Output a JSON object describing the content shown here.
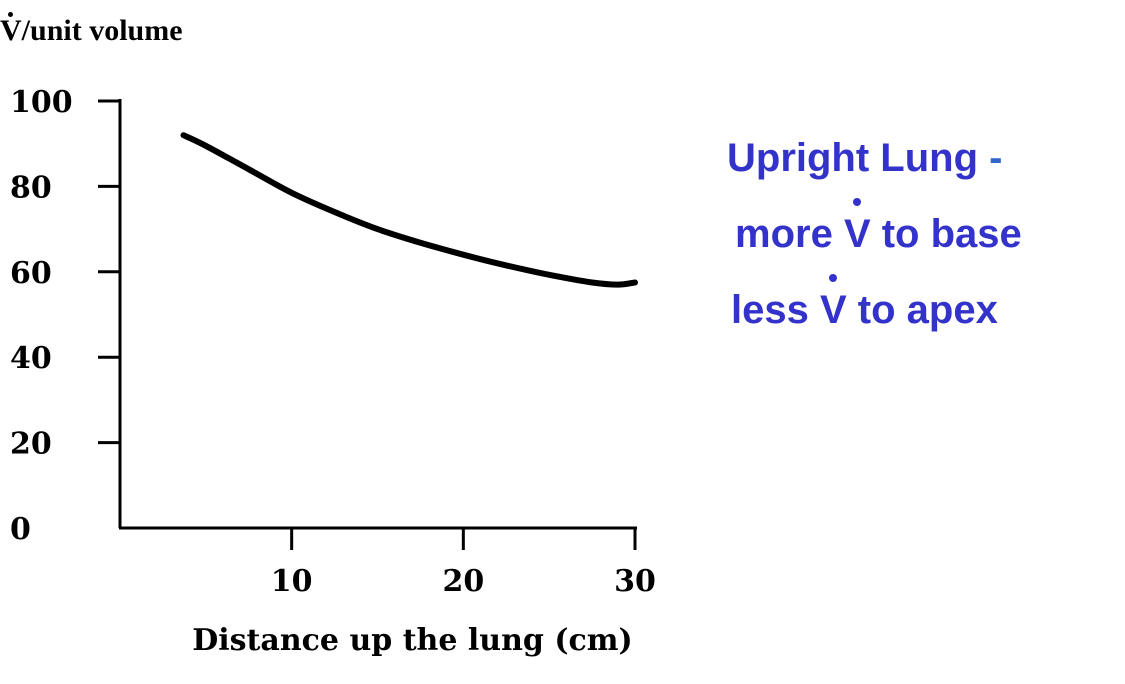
{
  "chart_data": {
    "type": "line",
    "ylabel_prefix": "V",
    "ylabel_rest": "/unit volume",
    "xlabel": "Distance up the lung (cm)",
    "x_ticks": [
      10,
      20,
      30
    ],
    "y_ticks": [
      0,
      20,
      40,
      60,
      80,
      100
    ],
    "xlim": [
      0,
      30
    ],
    "ylim": [
      0,
      100
    ],
    "grid": false,
    "series": [
      {
        "x": [
          3.7,
          5,
          7.5,
          10,
          12.5,
          15,
          17.5,
          20,
          22.5,
          25,
          27.5,
          29,
          30
        ],
        "y": [
          92,
          89.5,
          84,
          78.5,
          74,
          70,
          66.8,
          64,
          61.5,
          59.3,
          57.5,
          57,
          57.5
        ]
      }
    ]
  },
  "annotation": {
    "line1_text": "Upright Lung",
    "line1_dash": "-",
    "line2_prefix": "more ",
    "line2_symbol": "V",
    "line2_suffix": " to base",
    "line3_prefix": "less ",
    "line3_symbol": "V",
    "line3_suffix": " to apex"
  }
}
